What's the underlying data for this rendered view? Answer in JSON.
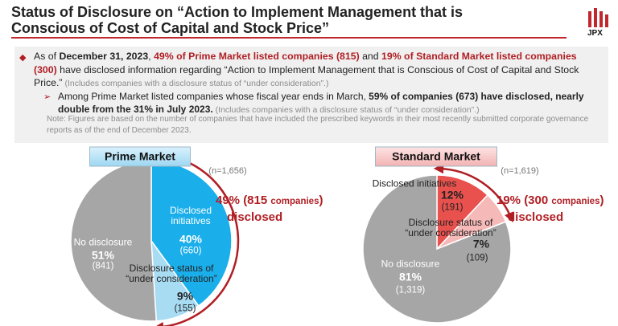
{
  "header": {
    "title_lines": [
      "Status of Disclosure on “Action to Implement Management that is",
      "Conscious of Cost of Capital and Stock Price”"
    ],
    "logo": "JPX"
  },
  "summary": {
    "bullets": [
      {
        "segments": [
          {
            "text": "As of ",
            "style": "normal"
          },
          {
            "text": "December 31, 2023",
            "style": "bold"
          },
          {
            "text": ", ",
            "style": "normal"
          },
          {
            "text": "49% of Prime Market listed companies (815)",
            "style": "red"
          },
          {
            "text": " and ",
            "style": "normal"
          },
          {
            "text": "19% of Standard Market listed companies (300)",
            "style": "red"
          },
          {
            "text": " have disclosed information regarding “Action to Implement Management that is Conscious of Cost of Capital and Stock Price.”",
            "style": "normal"
          },
          {
            "text": " (Includes companies with a disclosure status of “under consideration”.)",
            "style": "gray"
          }
        ]
      },
      {
        "segments": [
          {
            "text": "Among Prime Market listed companies whose fiscal year ends in March, ",
            "style": "normal"
          },
          {
            "text": "59% of companies (673) have disclosed, nearly double from the 31% in July 2023.",
            "style": "bold"
          },
          {
            "text": " (Includes companies with a disclosure status of “under consideration”.)",
            "style": "gray"
          }
        ]
      }
    ],
    "note": "Note: Figures are based on the number of companies that have included the prescribed keywords in their most recently submitted corporate governance reports as of the end of December 2023."
  },
  "chart_data": [
    {
      "type": "pie",
      "title": "Prime Market",
      "sample": "(n=1,656)",
      "categories": [
        "Disclosed initiatives",
        "Disclosure status of “under consideration”",
        "No disclosure"
      ],
      "values": [
        40,
        9,
        51
      ],
      "value_labels": [
        "40%",
        "9%",
        "51%"
      ],
      "count_labels": [
        "(660)",
        "(155)",
        "(841)"
      ],
      "colors": [
        "#1aaeea",
        "#a8dcf3",
        "#a6a6a6"
      ],
      "headline": {
        "parts": [
          "49% (815 ",
          "companies",
          ")"
        ],
        "line2": "disclosed"
      }
    },
    {
      "type": "pie",
      "title": "Standard Market",
      "sample": "(n=1,619)",
      "categories": [
        "Disclosed initiatives",
        "Disclosure status of “under consideration”",
        "No disclosure"
      ],
      "values": [
        12,
        7,
        81
      ],
      "value_labels": [
        "12%",
        "7%",
        "81%"
      ],
      "count_labels": [
        "(191)",
        "(109)",
        "(1,319)"
      ],
      "colors": [
        "#e8514d",
        "#f5b9b8",
        "#a6a6a6"
      ],
      "headline": {
        "parts": [
          "19% (300 ",
          "companies",
          ")"
        ],
        "line2": "disclosed"
      }
    }
  ]
}
